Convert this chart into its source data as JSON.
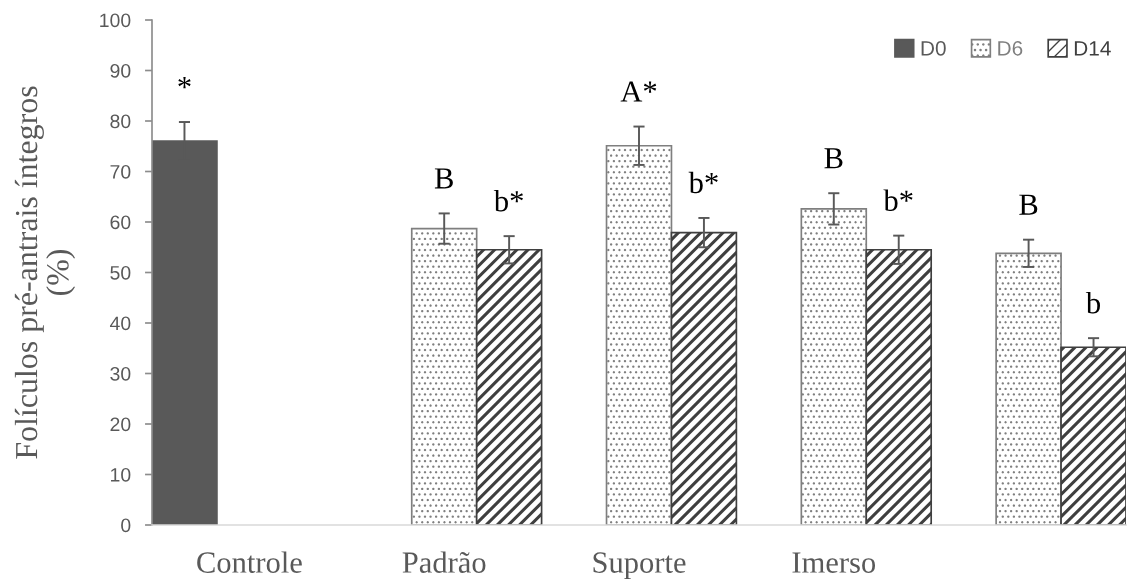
{
  "chart_data": {
    "type": "bar",
    "ylabel": "Folículos pré-antrais íntegros\n(%)",
    "categories": [
      "Controle",
      "Padrão",
      "Suporte",
      "Imerso",
      null
    ],
    "series": [
      {
        "name": "D0",
        "color": "#595959",
        "values": [
          76,
          null,
          null,
          null,
          null
        ],
        "errors": [
          3.8,
          null,
          null,
          null,
          null
        ],
        "value_labels": [
          "*",
          null,
          null,
          null,
          null
        ]
      },
      {
        "name": "D6",
        "color": "#7f7f7f",
        "values": [
          null,
          58.7,
          75.1,
          62.6,
          53.8
        ],
        "errors": [
          null,
          3.0,
          3.8,
          3.1,
          2.7
        ],
        "value_labels": [
          null,
          "B",
          "A*",
          "B",
          "B"
        ]
      },
      {
        "name": "D14",
        "color": "#3f3f3f",
        "values": [
          null,
          54.5,
          57.9,
          54.5,
          35.2
        ],
        "errors": [
          null,
          2.7,
          2.9,
          2.8,
          1.8
        ],
        "value_labels": [
          null,
          "b*",
          "b*",
          "b*",
          "b"
        ]
      }
    ],
    "ylim": [
      0,
      100
    ],
    "yticks": [
      0,
      10,
      20,
      30,
      40,
      50,
      60,
      70,
      80,
      90,
      100
    ],
    "legend": "top right"
  }
}
